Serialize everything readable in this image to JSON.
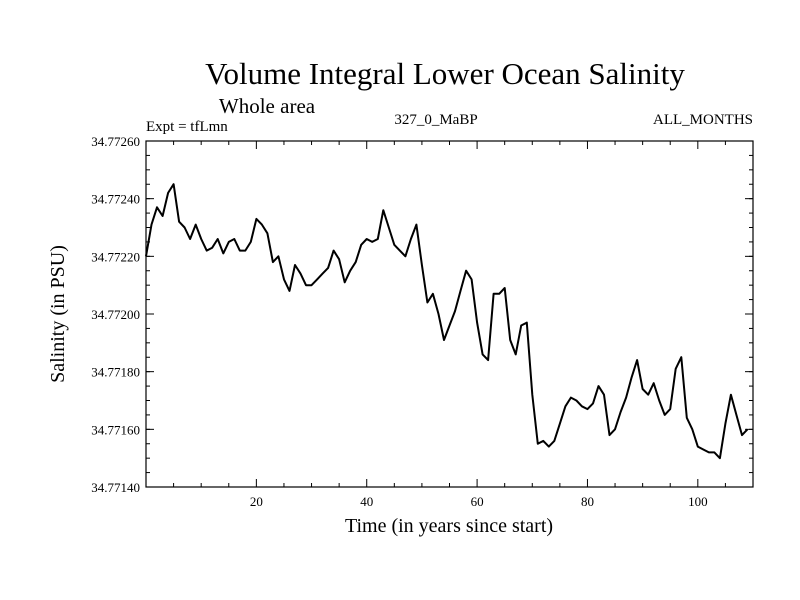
{
  "chart_data": {
    "type": "line",
    "title": "Volume Integral Lower Ocean Salinity",
    "subtitle": "Whole area",
    "experiment_label": "Expt = tfLmn",
    "run_label": "327_0_MaBP",
    "months_label": "ALL_MONTHS",
    "xlabel": "Time (in years since start)",
    "ylabel": "Salinity (in PSU)",
    "xlim": [
      0,
      110
    ],
    "ylim": [
      34.7714,
      34.7726
    ],
    "x_ticks": [
      20,
      40,
      60,
      80,
      100
    ],
    "x_tick_labels": [
      "20",
      "40",
      "60",
      "80",
      "100"
    ],
    "y_ticks": [
      34.7714,
      34.7716,
      34.7718,
      34.772,
      34.7722,
      34.7724,
      34.7726
    ],
    "y_tick_labels": [
      "34.77140",
      "34.77160",
      "34.77180",
      "34.77200",
      "34.77220",
      "34.77240",
      "34.77260"
    ],
    "grid": false,
    "series": [
      {
        "name": "Salinity",
        "color": "#000000",
        "x": [
          0,
          1,
          2,
          3,
          4,
          5,
          6,
          7,
          8,
          9,
          10,
          11,
          12,
          13,
          14,
          15,
          16,
          17,
          18,
          19,
          20,
          21,
          22,
          23,
          24,
          25,
          26,
          27,
          28,
          29,
          30,
          31,
          32,
          33,
          34,
          35,
          36,
          37,
          38,
          39,
          40,
          41,
          42,
          43,
          44,
          45,
          46,
          47,
          48,
          49,
          50,
          51,
          52,
          53,
          54,
          55,
          56,
          57,
          58,
          59,
          60,
          61,
          62,
          63,
          64,
          65,
          66,
          67,
          68,
          69,
          70,
          71,
          72,
          73,
          74,
          75,
          76,
          77,
          78,
          79,
          80,
          81,
          82,
          83,
          84,
          85,
          86,
          87,
          88,
          89,
          90,
          91,
          92,
          93,
          94,
          95,
          96,
          97,
          98,
          99,
          100,
          101,
          102,
          103,
          104,
          105,
          106,
          107,
          108,
          109
        ],
        "values": [
          34.7722,
          34.77231,
          34.77237,
          34.77234,
          34.77242,
          34.77245,
          34.77232,
          34.7723,
          34.77226,
          34.77231,
          34.77226,
          34.77222,
          34.77223,
          34.77226,
          34.77221,
          34.77225,
          34.77226,
          34.77222,
          34.77222,
          34.77225,
          34.77233,
          34.77231,
          34.77228,
          34.77218,
          34.7722,
          34.77212,
          34.77208,
          34.77217,
          34.77214,
          34.7721,
          34.7721,
          34.77212,
          34.77214,
          34.77216,
          34.77222,
          34.77219,
          34.77211,
          34.77215,
          34.77218,
          34.77224,
          34.77226,
          34.77225,
          34.77226,
          34.77236,
          34.7723,
          34.77224,
          34.77222,
          34.7722,
          34.77226,
          34.77231,
          34.77217,
          34.77204,
          34.77207,
          34.772,
          34.77191,
          34.77196,
          34.77201,
          34.77208,
          34.77215,
          34.77212,
          34.77197,
          34.77186,
          34.77184,
          34.77207,
          34.77207,
          34.77209,
          34.77191,
          34.77186,
          34.77196,
          34.77197,
          34.77172,
          34.77155,
          34.77156,
          34.77154,
          34.77156,
          34.77162,
          34.77168,
          34.77171,
          34.7717,
          34.77168,
          34.77167,
          34.77169,
          34.77175,
          34.77172,
          34.77158,
          34.7716,
          34.77166,
          34.77171,
          34.77178,
          34.77184,
          34.77174,
          34.77172,
          34.77176,
          34.7717,
          34.77165,
          34.77167,
          34.77181,
          34.77185,
          34.77164,
          34.7716,
          34.77154,
          34.77153,
          34.77152,
          34.77152,
          34.7715,
          34.77162,
          34.77172,
          34.77165,
          34.77158,
          34.7716
        ]
      }
    ]
  }
}
